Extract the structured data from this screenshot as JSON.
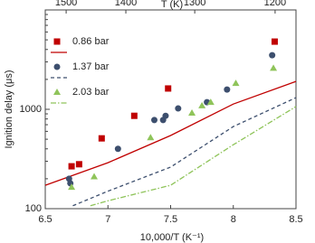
{
  "chart_data": {
    "type": "scatter",
    "xlabel": "10,000/T (K⁻¹)",
    "ylabel": "Ignition delay (μs)",
    "x2label": "T (K)",
    "xlim": [
      6.5,
      8.5
    ],
    "xticks": [
      6.5,
      7,
      7.5,
      8,
      8.5
    ],
    "ylim": [
      100,
      10000
    ],
    "yticks": [
      100,
      1000
    ],
    "ylog": true,
    "x2ticks": [
      1500,
      1400,
      1300,
      1200
    ],
    "series": [
      {
        "name": "0.86 bar",
        "color": "#c00000",
        "marker": "square",
        "line": "solid",
        "x": [
          6.71,
          6.77,
          6.95,
          7.21,
          7.48,
          8.33
        ],
        "values": [
          267,
          280,
          510,
          860,
          1620,
          4800
        ],
        "fit": {
          "x": [
            6.5,
            7,
            7.5,
            8,
            8.5
          ],
          "values": [
            172,
            290,
            545,
            1130,
            1910
          ]
        }
      },
      {
        "name": "1.37 bar",
        "color": "#3d4f6e",
        "marker": "circle",
        "line": "dashed",
        "x": [
          6.69,
          6.7,
          7.08,
          7.37,
          7.44,
          7.46,
          7.56,
          7.79,
          7.95,
          8.31
        ],
        "values": [
          200,
          180,
          400,
          780,
          780,
          860,
          1020,
          1180,
          1580,
          3500
        ],
        "fit": {
          "x": [
            6.72,
            7,
            7.5,
            8,
            8.5
          ],
          "values": [
            107,
            150,
            262,
            670,
            1310
          ]
        }
      },
      {
        "name": "2.03 bar",
        "color": "#8fc45a",
        "marker": "triangle",
        "line": "dashdot",
        "x": [
          6.71,
          6.89,
          7.34,
          7.67,
          7.75,
          7.82,
          8.02,
          8.32
        ],
        "values": [
          165,
          210,
          520,
          920,
          1090,
          1180,
          1830,
          2600
        ],
        "fit": {
          "x": [
            6.86,
            7,
            7.5,
            8,
            8.5
          ],
          "values": [
            107,
            120,
            172,
            440,
            1065
          ]
        }
      }
    ]
  }
}
